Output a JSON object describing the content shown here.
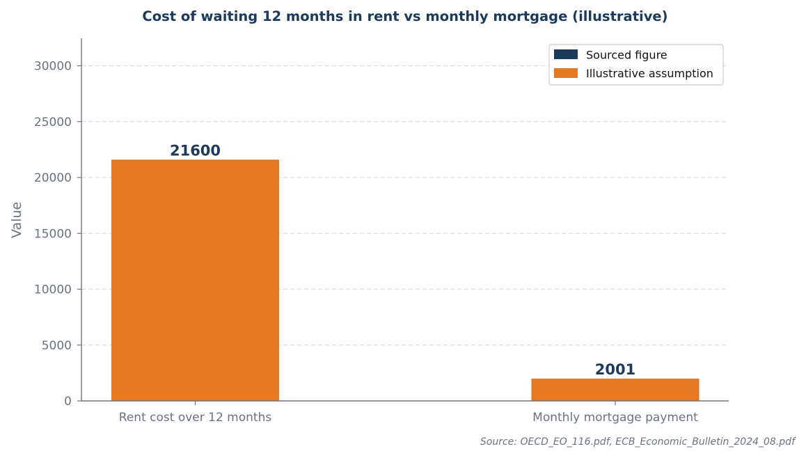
{
  "colors": {
    "title": "#1b3a5c",
    "axis_text": "#6b7280",
    "axis_line": "#6b7280",
    "grid": "#d9dde3",
    "sourced": "#1b3a5c",
    "illustrative": "#e67822",
    "bar_label": "#1b3a5c"
  },
  "legend": {
    "items": [
      {
        "label": "Sourced figure",
        "color": "#1b3a5c"
      },
      {
        "label": "Illustrative assumption",
        "color": "#e67822"
      }
    ]
  },
  "source_note": "Source: OECD_EO_116.pdf, ECB_Economic_Bulletin_2024_08.pdf",
  "chart_data": {
    "type": "bar",
    "title": "Cost of waiting 12 months in rent vs monthly mortgage (illustrative)",
    "xlabel": "",
    "ylabel": "Value",
    "categories": [
      "Rent cost over 12 months",
      "Monthly mortgage payment"
    ],
    "values": [
      21600,
      2001
    ],
    "value_labels": [
      "21600",
      "2001"
    ],
    "bar_kind": [
      "Illustrative assumption",
      "Illustrative assumption"
    ],
    "ylim": [
      0,
      32400
    ],
    "yticks": [
      0,
      5000,
      10000,
      15000,
      20000,
      25000,
      30000
    ],
    "ytick_labels": [
      "0",
      "5000",
      "10000",
      "15000",
      "20000",
      "25000",
      "30000"
    ],
    "grid": "horizontal dashed",
    "legend_position": "top-right"
  }
}
